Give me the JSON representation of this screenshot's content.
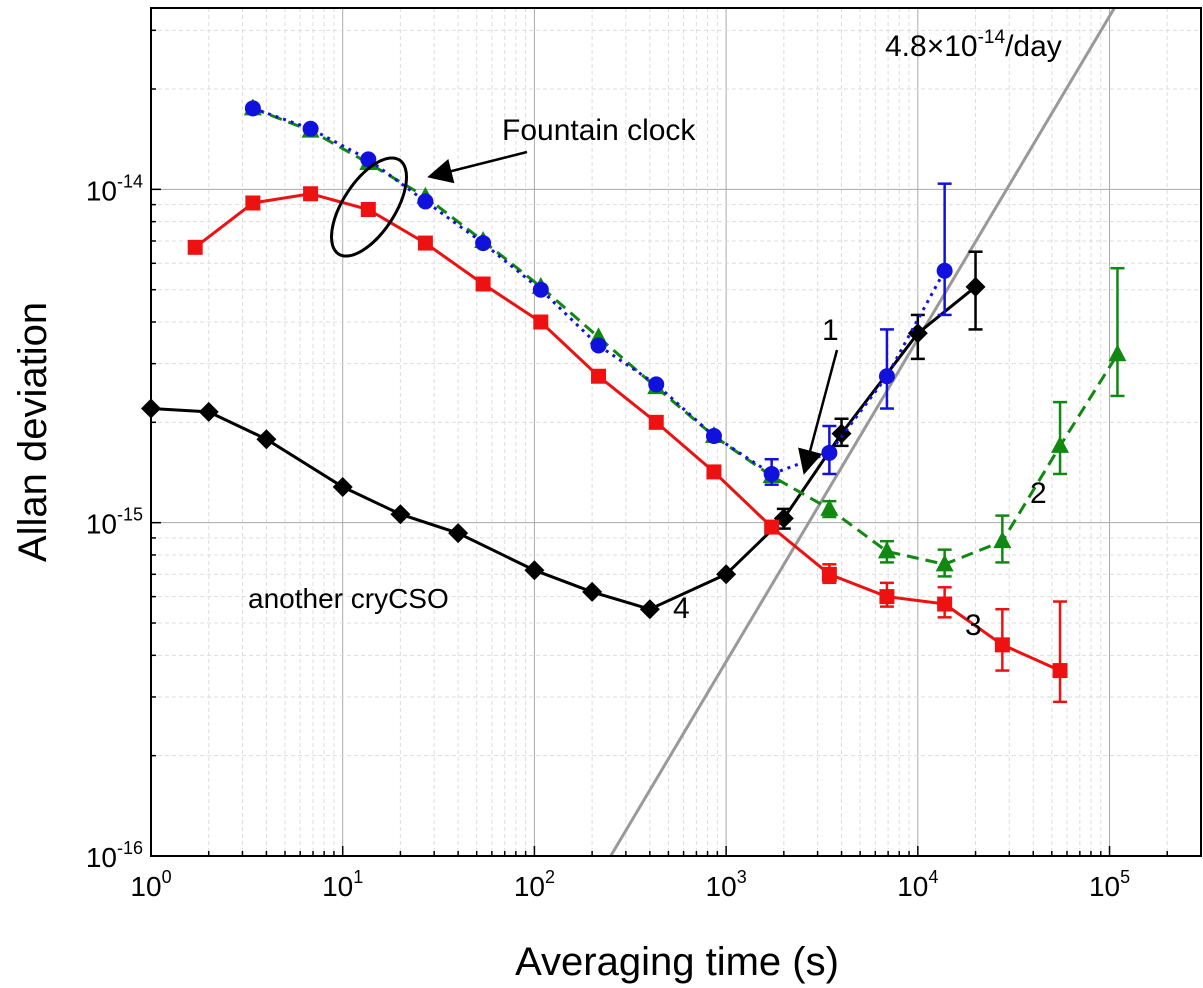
{
  "chart_data": {
    "type": "line",
    "title": "",
    "xlabel": "Averaging time (s)",
    "ylabel": "Allan deviation",
    "x_scale": "log",
    "y_scale": "log",
    "xlim": [
      1,
      300000
    ],
    "ylim": [
      1e-16,
      3.5e-14
    ],
    "grid": true,
    "x_ticks": [
      {
        "value": 1,
        "base": "10",
        "exp": "0"
      },
      {
        "value": 10,
        "base": "10",
        "exp": "1"
      },
      {
        "value": 100,
        "base": "10",
        "exp": "2"
      },
      {
        "value": 1000,
        "base": "10",
        "exp": "3"
      },
      {
        "value": 10000,
        "base": "10",
        "exp": "4"
      },
      {
        "value": 100000,
        "base": "10",
        "exp": "5"
      }
    ],
    "y_ticks": [
      {
        "value": 1e-16,
        "base": "10",
        "exp": "-16"
      },
      {
        "value": 1e-15,
        "base": "10",
        "exp": "-15"
      },
      {
        "value": 1e-14,
        "base": "10",
        "exp": "-14"
      }
    ],
    "series": [
      {
        "label": "4",
        "color": "#000000",
        "marker": "diamond",
        "dash": "solid",
        "points": [
          {
            "x": 1,
            "y": 2.2e-15
          },
          {
            "x": 2,
            "y": 2.15e-15
          },
          {
            "x": 4,
            "y": 1.78e-15
          },
          {
            "x": 10,
            "y": 1.28e-15
          },
          {
            "x": 20,
            "y": 1.06e-15
          },
          {
            "x": 40,
            "y": 9.3e-16
          },
          {
            "x": 100,
            "y": 7.2e-16
          },
          {
            "x": 200,
            "y": 6.2e-16
          },
          {
            "x": 400,
            "y": 5.5e-16
          },
          {
            "x": 1000,
            "y": 7e-16
          },
          {
            "x": 2000,
            "y": 1.03e-15,
            "err_lo": 9.6e-16,
            "err_hi": 1.1e-15
          },
          {
            "x": 4000,
            "y": 1.85e-15,
            "err_lo": 1.7e-15,
            "err_hi": 2.05e-15
          },
          {
            "x": 10000,
            "y": 3.7e-15,
            "err_lo": 3.1e-15,
            "err_hi": 4.2e-15
          },
          {
            "x": 20000,
            "y": 5.1e-15,
            "err_lo": 3.8e-15,
            "err_hi": 6.5e-15
          }
        ]
      },
      {
        "label": "3",
        "color": "#ee1111",
        "marker": "square",
        "dash": "solid",
        "points": [
          {
            "x": 1.7,
            "y": 6.7e-15
          },
          {
            "x": 3.4,
            "y": 9.1e-15
          },
          {
            "x": 6.8,
            "y": 9.7e-15
          },
          {
            "x": 13.6,
            "y": 8.7e-15
          },
          {
            "x": 27,
            "y": 6.9e-15
          },
          {
            "x": 54,
            "y": 5.2e-15
          },
          {
            "x": 108,
            "y": 4e-15
          },
          {
            "x": 216,
            "y": 2.75e-15
          },
          {
            "x": 432,
            "y": 2e-15
          },
          {
            "x": 864,
            "y": 1.42e-15
          },
          {
            "x": 1728,
            "y": 9.7e-16
          },
          {
            "x": 3456,
            "y": 7e-16,
            "err_lo": 6.6e-16,
            "err_hi": 7.5e-16
          },
          {
            "x": 6900,
            "y": 6e-16,
            "err_lo": 5.6e-16,
            "err_hi": 6.6e-16
          },
          {
            "x": 13800,
            "y": 5.7e-16,
            "err_lo": 5.2e-16,
            "err_hi": 6.4e-16
          },
          {
            "x": 27600,
            "y": 4.3e-16,
            "err_lo": 3.6e-16,
            "err_hi": 5.5e-16
          },
          {
            "x": 55200,
            "y": 3.6e-16,
            "err_lo": 2.9e-16,
            "err_hi": 5.8e-16
          }
        ]
      },
      {
        "label": "2",
        "color": "#118811",
        "marker": "triangle",
        "dash": "dashed",
        "points": [
          {
            "x": 3.4,
            "y": 1.75e-14
          },
          {
            "x": 6.8,
            "y": 1.5e-14
          },
          {
            "x": 13.6,
            "y": 1.2e-14
          },
          {
            "x": 27,
            "y": 9.5e-15
          },
          {
            "x": 54,
            "y": 7e-15
          },
          {
            "x": 108,
            "y": 5.1e-15
          },
          {
            "x": 216,
            "y": 3.6e-15
          },
          {
            "x": 432,
            "y": 2.55e-15
          },
          {
            "x": 864,
            "y": 1.82e-15
          },
          {
            "x": 1728,
            "y": 1.38e-15
          },
          {
            "x": 3456,
            "y": 1.1e-15,
            "err_lo": 1.04e-15,
            "err_hi": 1.16e-15
          },
          {
            "x": 6900,
            "y": 8.2e-16,
            "err_lo": 7.6e-16,
            "err_hi": 8.8e-16
          },
          {
            "x": 13800,
            "y": 7.5e-16,
            "err_lo": 6.9e-16,
            "err_hi": 8.3e-16
          },
          {
            "x": 27600,
            "y": 8.8e-16,
            "err_lo": 7.6e-16,
            "err_hi": 1.05e-15
          },
          {
            "x": 55200,
            "y": 1.7e-15,
            "err_lo": 1.4e-15,
            "err_hi": 2.3e-15
          },
          {
            "x": 110000,
            "y": 3.2e-15,
            "err_lo": 2.4e-15,
            "err_hi": 5.8e-15
          }
        ]
      },
      {
        "label": "1",
        "color": "#1111dd",
        "marker": "circle",
        "dash": "dotted",
        "points": [
          {
            "x": 3.4,
            "y": 1.75e-14
          },
          {
            "x": 6.8,
            "y": 1.52e-14
          },
          {
            "x": 13.6,
            "y": 1.23e-14
          },
          {
            "x": 27,
            "y": 9.2e-15
          },
          {
            "x": 54,
            "y": 6.9e-15
          },
          {
            "x": 108,
            "y": 5e-15
          },
          {
            "x": 216,
            "y": 3.4e-15
          },
          {
            "x": 432,
            "y": 2.6e-15
          },
          {
            "x": 864,
            "y": 1.82e-15
          },
          {
            "x": 1728,
            "y": 1.4e-15,
            "err_lo": 1.3e-15,
            "err_hi": 1.55e-15
          },
          {
            "x": 3456,
            "y": 1.62e-15,
            "err_lo": 1.4e-15,
            "err_hi": 1.95e-15
          },
          {
            "x": 6900,
            "y": 2.75e-15,
            "err_lo": 2.2e-15,
            "err_hi": 3.8e-15
          },
          {
            "x": 13800,
            "y": 5.7e-15,
            "err_lo": 4.2e-15,
            "err_hi": 1.04e-14
          }
        ]
      }
    ],
    "drift_line": {
      "label": "4.8×10",
      "label_exp": "-14",
      "label_suffix": "/day",
      "color": "#999999",
      "from": {
        "x": 250,
        "y": 1e-16
      },
      "to": {
        "x": 106000,
        "y": 3.5e-14
      }
    },
    "annotations": [
      {
        "text": "Fountain clock",
        "x": 200,
        "y": 1.62e-14
      },
      {
        "text": "another cryCSO",
        "x": 5.8,
        "y": 6.35e-16
      }
    ]
  }
}
